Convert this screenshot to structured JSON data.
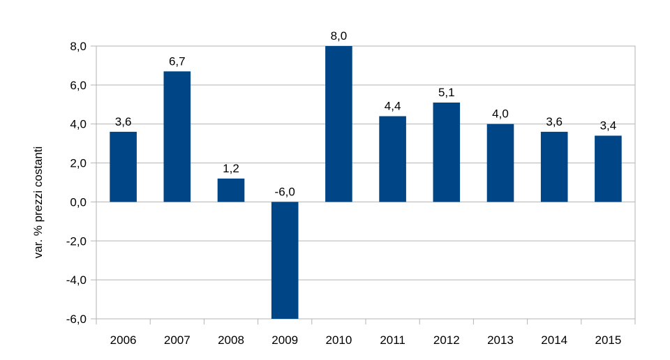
{
  "chart_data": {
    "type": "bar",
    "title": "",
    "xlabel": "",
    "ylabel": "var. % prezzi costanti",
    "categories": [
      "2006",
      "2007",
      "2008",
      "2009",
      "2010",
      "2011",
      "2012",
      "2013",
      "2014",
      "2015"
    ],
    "values": [
      3.6,
      6.7,
      1.2,
      -6.0,
      8.0,
      4.4,
      5.1,
      4.0,
      3.6,
      3.4
    ],
    "data_labels": [
      "3,6",
      "6,7",
      "1,2",
      "-6,0",
      "8,0",
      "4,4",
      "5,1",
      "4,0",
      "3,6",
      "3,4"
    ],
    "ylim": [
      -6,
      8
    ],
    "yticks": [
      8,
      6,
      4,
      2,
      0,
      -2,
      -4,
      -6
    ],
    "ytick_labels": [
      "8,0",
      "6,0",
      "4,0",
      "2,0",
      "0,0",
      "-2,0",
      "-4,0",
      "-6,0"
    ],
    "grid": true,
    "legend": "none",
    "colors": {
      "bar": "#004586",
      "axis": "#b3b3b3"
    }
  }
}
